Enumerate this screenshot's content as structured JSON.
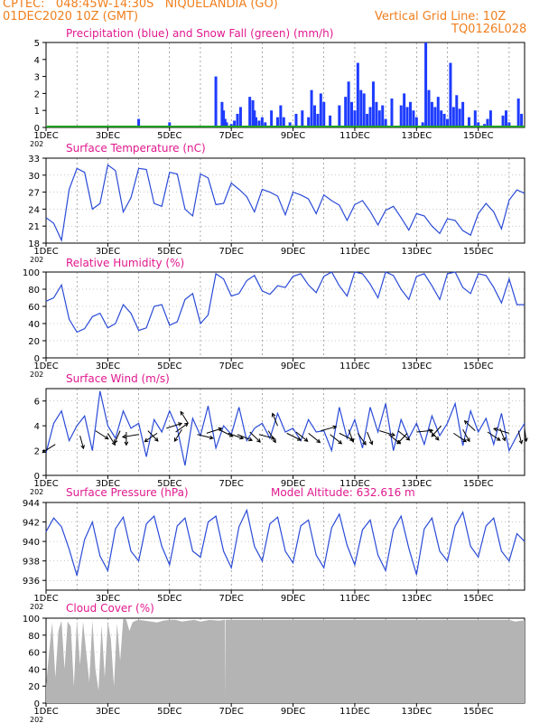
{
  "header": {
    "line1": "CPTEC:   048:45W-14:30S   NIQUELANDIA (GO)",
    "line2": "01DEC2020 10Z (GMT)",
    "right1": "Vertical Grid Line: 10Z",
    "right2": "TQ0126L028"
  },
  "colors": {
    "header": "#f07f1e",
    "panel_title": "#e0198e",
    "precip": "#1e3cff",
    "snow": "#20a020",
    "line": "#2a4bd7",
    "cloud": "#b4b4b4",
    "arrow": "#000000"
  },
  "x_ticks": [
    "1DEC",
    "3DEC",
    "5DEC",
    "7DEC",
    "9DEC",
    "11DEC",
    "13DEC",
    "15DEC"
  ],
  "year_stub": "202",
  "chart_data": [
    {
      "id": "precip",
      "type": "bar",
      "title": "Precipitation (blue) and Snow Fall (green) (mm/h)",
      "ylim": [
        0,
        5
      ],
      "yticks": [
        "0",
        "1",
        "2",
        "3",
        "4",
        "5"
      ],
      "x_days": [
        0,
        15.5
      ],
      "series": [
        {
          "name": "Precipitation",
          "days": [
            3.0,
            4.0,
            5.5,
            5.7,
            5.75,
            5.8,
            5.85,
            6.0,
            6.1,
            6.2,
            6.3,
            6.6,
            6.7,
            6.75,
            6.8,
            6.9,
            7.0,
            7.1,
            7.3,
            7.5,
            7.6,
            7.7,
            7.9,
            8.1,
            8.3,
            8.5,
            8.6,
            8.7,
            8.8,
            8.9,
            9.0,
            9.2,
            9.5,
            9.7,
            9.8,
            9.9,
            10.0,
            10.1,
            10.2,
            10.3,
            10.4,
            10.5,
            10.6,
            10.7,
            10.8,
            10.9,
            11.0,
            11.2,
            11.5,
            11.6,
            11.7,
            11.8,
            11.9,
            12.0,
            12.2,
            12.3,
            12.4,
            12.5,
            12.6,
            12.7,
            12.8,
            12.9,
            13.0,
            13.1,
            13.2,
            13.3,
            13.4,
            13.5,
            13.7,
            13.9,
            14.0,
            14.2,
            14.3,
            14.4,
            14.8,
            14.9,
            15.0,
            15.3,
            15.4
          ],
          "values": [
            0.5,
            0.3,
            3.0,
            1.5,
            1.0,
            0.5,
            0.3,
            0.2,
            0.4,
            0.8,
            1.2,
            1.8,
            1.6,
            1.0,
            0.6,
            0.4,
            0.6,
            0.3,
            1.0,
            0.6,
            1.3,
            0.6,
            0.3,
            0.8,
            1.0,
            0.6,
            2.2,
            1.3,
            0.8,
            2.0,
            1.5,
            0.7,
            1.3,
            1.8,
            2.7,
            1.5,
            1.0,
            3.8,
            2.2,
            2.0,
            0.8,
            1.2,
            2.7,
            1.5,
            1.0,
            1.3,
            0.5,
            1.7,
            1.3,
            2.0,
            1.2,
            1.5,
            1.0,
            0.6,
            0.3,
            5.0,
            2.2,
            1.5,
            1.2,
            1.8,
            1.0,
            0.8,
            0.5,
            3.8,
            1.2,
            1.9,
            1.1,
            1.5,
            0.6,
            1.0,
            0.3,
            0.2,
            0.5,
            1.0,
            0.7,
            1.0,
            0.3,
            1.7,
            0.8
          ]
        },
        {
          "name": "Snow Fall",
          "days": [
            0.0,
            15.5
          ],
          "values": [
            0,
            0
          ]
        }
      ]
    },
    {
      "id": "temp",
      "type": "line",
      "title": "Surface Temperature (nC)",
      "ylim": [
        18,
        33
      ],
      "yticks": [
        "18",
        "21",
        "24",
        "27",
        "30",
        "33"
      ],
      "x": [
        0,
        0.25,
        0.5,
        0.75,
        1.0,
        1.25,
        1.5,
        1.75,
        2.0,
        2.25,
        2.5,
        2.75,
        3.0,
        3.25,
        3.5,
        3.75,
        4.0,
        4.25,
        4.5,
        4.75,
        5.0,
        5.25,
        5.5,
        5.75,
        6.0,
        6.25,
        6.5,
        6.75,
        7.0,
        7.25,
        7.5,
        7.75,
        8.0,
        8.25,
        8.5,
        8.75,
        9.0,
        9.25,
        9.5,
        9.75,
        10.0,
        10.25,
        10.5,
        10.75,
        11.0,
        11.25,
        11.5,
        11.75,
        12.0,
        12.25,
        12.5,
        12.75,
        13.0,
        13.25,
        13.5,
        13.75,
        14.0,
        14.25,
        14.5,
        14.75,
        15.0,
        15.25,
        15.5
      ],
      "y": [
        22.5,
        21.5,
        18.5,
        27.5,
        31.2,
        30.5,
        24,
        25,
        31.8,
        30.8,
        23.5,
        26,
        31.2,
        31,
        25,
        24.5,
        30.5,
        30.2,
        24,
        22.8,
        30.2,
        29.5,
        24.8,
        25,
        28.6,
        27.5,
        26.2,
        23.5,
        27.5,
        27,
        26.3,
        23,
        27,
        26.5,
        25.8,
        23.2,
        26.5,
        25.5,
        24.7,
        22,
        24.8,
        25.5,
        23.6,
        21.2,
        23.8,
        24.5,
        22.5,
        20.3,
        23.2,
        22.8,
        21,
        19.7,
        22.3,
        22,
        20.2,
        19.4,
        23.2,
        25,
        23.5,
        20.5,
        25.6,
        27.4,
        26.8
      ]
    },
    {
      "id": "rh",
      "type": "line",
      "title": "Relative Humidity (%)",
      "ylim": [
        0,
        100
      ],
      "yticks": [
        "0",
        "20",
        "40",
        "60",
        "80",
        "100"
      ],
      "x": [
        0,
        0.25,
        0.5,
        0.75,
        1.0,
        1.25,
        1.5,
        1.75,
        2.0,
        2.25,
        2.5,
        2.75,
        3.0,
        3.25,
        3.5,
        3.75,
        4.0,
        4.25,
        4.5,
        4.75,
        5.0,
        5.25,
        5.5,
        5.75,
        6.0,
        6.25,
        6.5,
        6.75,
        7.0,
        7.25,
        7.5,
        7.75,
        8.0,
        8.25,
        8.5,
        8.75,
        9.0,
        9.25,
        9.5,
        9.75,
        10.0,
        10.25,
        10.5,
        10.75,
        11.0,
        11.25,
        11.5,
        11.75,
        12.0,
        12.25,
        12.5,
        12.75,
        13.0,
        13.25,
        13.5,
        13.75,
        14.0,
        14.25,
        14.5,
        14.75,
        15.0,
        15.25,
        15.5
      ],
      "y": [
        66,
        70,
        85,
        45,
        30,
        34,
        48,
        52,
        35,
        40,
        62,
        52,
        32,
        35,
        60,
        62,
        38,
        42,
        68,
        75,
        40,
        50,
        98,
        92,
        72,
        75,
        90,
        96,
        78,
        74,
        84,
        82,
        95,
        98,
        85,
        76,
        95,
        100,
        84,
        72,
        100,
        98,
        86,
        70,
        100,
        96,
        80,
        68,
        95,
        98,
        84,
        68,
        98,
        100,
        82,
        75,
        98,
        96,
        82,
        64,
        92,
        62,
        62
      ]
    },
    {
      "id": "wind",
      "type": "line",
      "title": "Surface Wind (m/s)",
      "ylim": [
        0,
        7
      ],
      "yticks": [
        "0",
        "2",
        "4",
        "6"
      ],
      "x": [
        0,
        0.25,
        0.5,
        0.75,
        1.0,
        1.25,
        1.5,
        1.75,
        2.0,
        2.25,
        2.5,
        2.75,
        3.0,
        3.25,
        3.5,
        3.75,
        4.0,
        4.25,
        4.5,
        4.75,
        5.0,
        5.25,
        5.5,
        5.75,
        6.0,
        6.25,
        6.5,
        6.75,
        7.0,
        7.25,
        7.5,
        7.75,
        8.0,
        8.25,
        8.5,
        8.75,
        9.0,
        9.25,
        9.5,
        9.75,
        10.0,
        10.25,
        10.5,
        10.75,
        11.0,
        11.25,
        11.5,
        11.75,
        12.0,
        12.25,
        12.5,
        12.75,
        13.0,
        13.25,
        13.5,
        13.75,
        14.0,
        14.25,
        14.5,
        14.75,
        15.0,
        15.25,
        15.5
      ],
      "y": [
        1.8,
        4.2,
        5.2,
        2.8,
        4.0,
        4.8,
        2.0,
        6.8,
        4.0,
        3.0,
        5.2,
        3.8,
        4.2,
        1.5,
        4.5,
        3.5,
        5.2,
        3.8,
        0.8,
        4.6,
        3.2,
        5.6,
        2.2,
        4.0,
        3.3,
        5.5,
        2.8,
        3.8,
        4.2,
        3.0,
        5.0,
        3.5,
        3.8,
        2.8,
        4.5,
        3.5,
        3.6,
        2.0,
        5.5,
        3.0,
        4.5,
        2.2,
        5.5,
        3.5,
        5.8,
        2.0,
        4.5,
        3.0,
        4.2,
        2.5,
        4.8,
        3.2,
        4.2,
        5.8,
        2.4,
        5.2,
        3.5,
        4.6,
        2.5,
        5.0,
        2.0,
        3.2,
        4.2
      ]
    },
    {
      "id": "pressure",
      "type": "line",
      "title": "Surface Pressure (hPa)",
      "annotation": "Model Altitude: 632.616 m",
      "ylim": [
        935,
        944
      ],
      "yticks": [
        "936",
        "938",
        "940",
        "942",
        "944"
      ],
      "x": [
        0,
        0.25,
        0.5,
        0.75,
        1.0,
        1.25,
        1.5,
        1.75,
        2.0,
        2.25,
        2.5,
        2.75,
        3.0,
        3.25,
        3.5,
        3.75,
        4.0,
        4.25,
        4.5,
        4.75,
        5.0,
        5.25,
        5.5,
        5.75,
        6.0,
        6.25,
        6.5,
        6.75,
        7.0,
        7.25,
        7.5,
        7.75,
        8.0,
        8.25,
        8.5,
        8.75,
        9.0,
        9.25,
        9.5,
        9.75,
        10.0,
        10.25,
        10.5,
        10.75,
        11.0,
        11.25,
        11.5,
        11.75,
        12.0,
        12.25,
        12.5,
        12.75,
        13.0,
        13.25,
        13.5,
        13.75,
        14.0,
        14.25,
        14.5,
        14.75,
        15.0,
        15.25,
        15.5
      ],
      "y": [
        941,
        942.4,
        941.5,
        939.2,
        936.5,
        940.2,
        942,
        938.5,
        937,
        941.3,
        942.5,
        939,
        938,
        941.8,
        942.6,
        939.5,
        937.6,
        941.6,
        942.4,
        939,
        938.4,
        942,
        942.6,
        939,
        937.3,
        941.5,
        943.2,
        939.5,
        938,
        941.8,
        942.5,
        939,
        937.8,
        941.6,
        942.2,
        938.6,
        937.3,
        941.4,
        942.8,
        939.6,
        937.6,
        941.2,
        942.2,
        938.6,
        937,
        941.2,
        942.6,
        939.3,
        936.6,
        941.3,
        942.4,
        939,
        938,
        941.6,
        943,
        939.5,
        938.4,
        941.6,
        942.4,
        939,
        938,
        940.8,
        940
      ]
    },
    {
      "id": "cloud",
      "type": "area",
      "title": "Cloud Cover (%)",
      "ylim": [
        0,
        100
      ],
      "yticks": [
        "0",
        "20",
        "40",
        "60",
        "80",
        "100"
      ],
      "x": [
        0,
        0.1,
        0.2,
        0.3,
        0.4,
        0.5,
        0.6,
        0.7,
        0.8,
        0.9,
        1.0,
        1.1,
        1.2,
        1.3,
        1.4,
        1.5,
        1.6,
        1.7,
        1.8,
        1.9,
        2.0,
        2.1,
        2.2,
        2.3,
        2.4,
        2.5,
        2.6,
        2.7,
        2.8,
        2.9,
        3.0,
        3.2,
        3.4,
        3.6,
        3.8,
        4.0,
        4.2,
        4.4,
        4.6,
        4.8,
        5.0,
        5.3,
        5.6,
        5.79,
        5.8,
        5.81,
        6.0,
        7.0,
        8.0,
        9.0,
        10.0,
        11.0,
        12.0,
        13.0,
        14.0,
        15.0,
        15.2,
        15.4,
        15.5
      ],
      "y": [
        20,
        60,
        95,
        30,
        85,
        97,
        40,
        96,
        90,
        20,
        98,
        45,
        96,
        60,
        25,
        97,
        40,
        15,
        92,
        30,
        96,
        75,
        20,
        94,
        50,
        100,
        98,
        85,
        95,
        97,
        98,
        97,
        96,
        95,
        97,
        98,
        98,
        96,
        97,
        98,
        96,
        98,
        97,
        98,
        5,
        98,
        98,
        98,
        98,
        98,
        98,
        98,
        98,
        98,
        98,
        98,
        96,
        97,
        97
      ]
    },
    {
      "id": "wind_arrows",
      "type": "scatter",
      "x": [
        0.3,
        1.1,
        1.6,
        2.0,
        2.4,
        2.6,
        3.0,
        3.3,
        3.6,
        3.9,
        4.2,
        4.4,
        4.6,
        4.9,
        5.2,
        5.6,
        5.9,
        6.2,
        6.6,
        6.9,
        7.2,
        7.5,
        7.8,
        8.1,
        8.5,
        8.9,
        9.2,
        9.5,
        9.8,
        10.1,
        10.4,
        10.8,
        11.1,
        11.4,
        11.7,
        12.0,
        12.4,
        12.8,
        13.2,
        13.5,
        13.9,
        14.3,
        14.7,
        15.0,
        15.3,
        15.5
      ],
      "y": [
        2.5,
        3.2,
        3.6,
        3.4,
        3.6,
        3.5,
        3.3,
        3.6,
        3.4,
        3.8,
        3.5,
        3.7,
        4.2,
        3.3,
        3.4,
        3.7,
        3.4,
        3.3,
        3.5,
        3.3,
        3.6,
        4.0,
        3.4,
        3.5,
        3.4,
        3.6,
        3.3,
        3.4,
        3.7,
        3.4,
        3.5,
        3.6,
        3.3,
        3.6,
        3.4,
        3.5,
        3.7,
        4.0,
        3.4,
        3.7,
        3.6,
        3.5,
        3.8,
        3.4,
        3.6,
        3.8
      ],
      "u": [
        -1,
        0.2,
        1,
        0.6,
        -0.4,
        0,
        -1,
        0.7,
        -0.6,
        0.5,
        0.9,
        -0.5,
        -0.3,
        1,
        1,
        0.8,
        0.9,
        0.8,
        0.5,
        0.6,
        0.4,
        -0.2,
        0.8,
        0.5,
        0.6,
        0.9,
        0.7,
        0.8,
        0.3,
        0.5,
        0.3,
        0.8,
        0.6,
        0.7,
        -0.6,
        0.8,
        0.6,
        -0.5,
        0.6,
        0.4,
        -0.6,
        0.6,
        0.3,
        -0.8,
        0.2,
        0.1
      ],
      "v": [
        0.8,
        0.9,
        0.8,
        1.2,
        1.1,
        1.2,
        0.2,
        0.9,
        0.5,
        -0.2,
        -0.8,
        1.0,
        -0.6,
        0.3,
        -0.4,
        0.5,
        0.4,
        0.4,
        0.6,
        0.2,
        0.8,
        -0.6,
        0.5,
        0.5,
        0.6,
        -0.3,
        0.7,
        0.5,
        1.0,
        0.9,
        0.9,
        0.3,
        0.6,
        0.7,
        0.8,
        -0.1,
        0.8,
        0.7,
        0.5,
        0.9,
        -0.7,
        0.5,
        0.9,
        -0.3,
        1.0,
        1.0
      ]
    }
  ]
}
